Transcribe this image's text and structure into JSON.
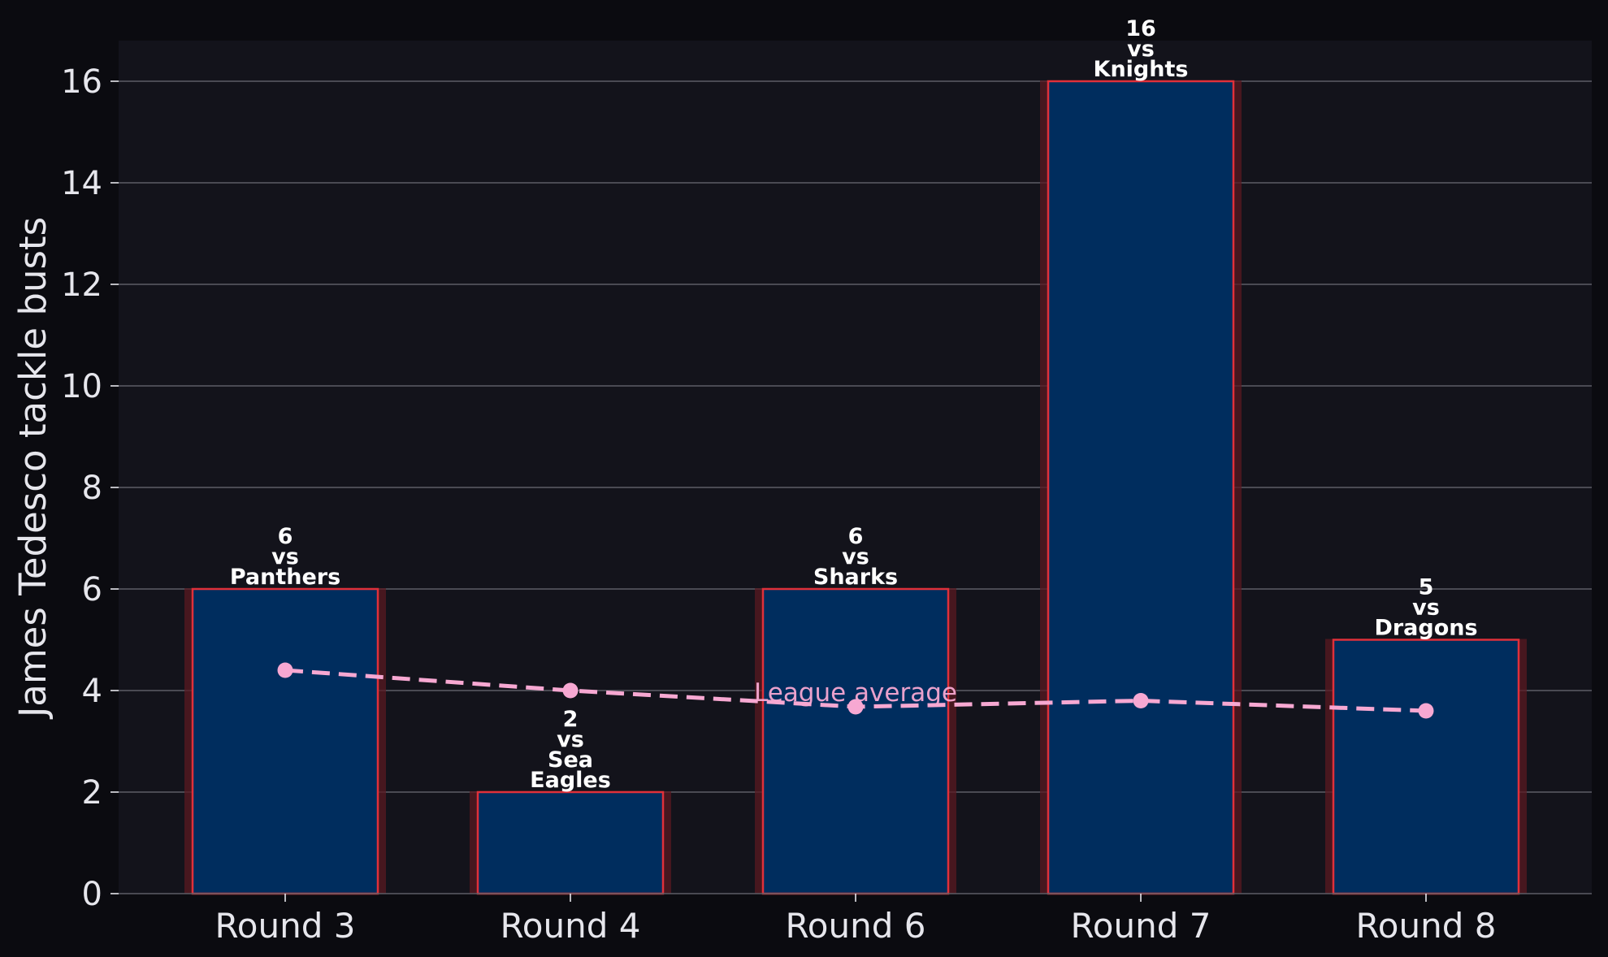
{
  "chart_data": {
    "type": "bar",
    "categories": [
      "Round 3",
      "Round 4",
      "Round 6",
      "Round 7",
      "Round 8"
    ],
    "values": [
      6,
      2,
      6,
      16,
      5
    ],
    "opponents": [
      "Panthers",
      "Sea Eagles",
      "Sharks",
      "Knights",
      "Dragons"
    ],
    "bar_labels": [
      [
        "6",
        "vs",
        "Panthers"
      ],
      [
        "2",
        "vs",
        "Sea",
        "Eagles"
      ],
      [
        "6",
        "vs",
        "Sharks"
      ],
      [
        "16",
        "vs",
        "Knights"
      ],
      [
        "5",
        "vs",
        "Dragons"
      ]
    ],
    "series": [
      {
        "name": "James Tedesco",
        "values": [
          6,
          2,
          6,
          16,
          5
        ]
      },
      {
        "name": "League average",
        "values": [
          4.4,
          4.0,
          3.68,
          3.8,
          3.6
        ]
      }
    ],
    "line_label": "League average",
    "title": "",
    "xlabel": "",
    "ylabel": "James Tedesco tackle busts",
    "ylim": [
      0,
      16.8
    ],
    "yticks": [
      0,
      2,
      4,
      6,
      8,
      10,
      12,
      14,
      16
    ],
    "grid": "horizontal",
    "colors": {
      "page_background": "#0b0b10",
      "plot_background": "#13131b",
      "bar_fill": "#002d5e",
      "bar_edge": "#e0303a",
      "bar_glow": "#5a1a22",
      "line": "#f7a8d2",
      "grid": "#5d5d66",
      "text": "#e6e6ec",
      "label_text": "#ffffff"
    }
  }
}
